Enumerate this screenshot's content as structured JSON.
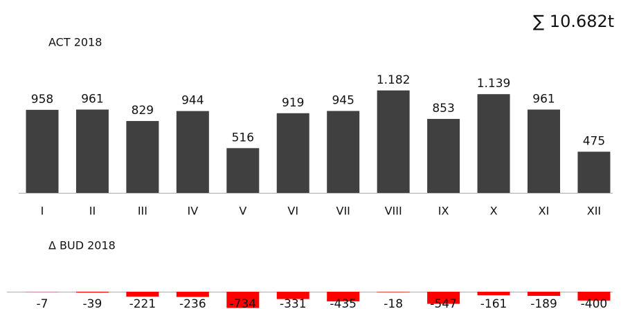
{
  "chart_data": [
    {
      "type": "bar",
      "title": "ACT 2018",
      "annotation": "∑ 10.682t",
      "categories": [
        "I",
        "II",
        "III",
        "IV",
        "V",
        "VI",
        "VII",
        "VIII",
        "IX",
        "X",
        "XI",
        "XII"
      ],
      "values": [
        958,
        961,
        829,
        944,
        516,
        919,
        945,
        1182,
        853,
        1139,
        961,
        475
      ],
      "value_labels": [
        "958",
        "961",
        "829",
        "944",
        "516",
        "919",
        "945",
        "1.182",
        "853",
        "1.139",
        "961",
        "475"
      ],
      "color": "#404040",
      "ylim": [
        0,
        1300
      ]
    },
    {
      "type": "bar",
      "title": "Δ BUD 2018",
      "values": [
        -7,
        -39,
        -221,
        -236,
        -734,
        -331,
        -435,
        -18,
        -547,
        -161,
        -189,
        -400
      ],
      "color": "#ff0000",
      "ylim": [
        -750,
        0
      ]
    }
  ]
}
